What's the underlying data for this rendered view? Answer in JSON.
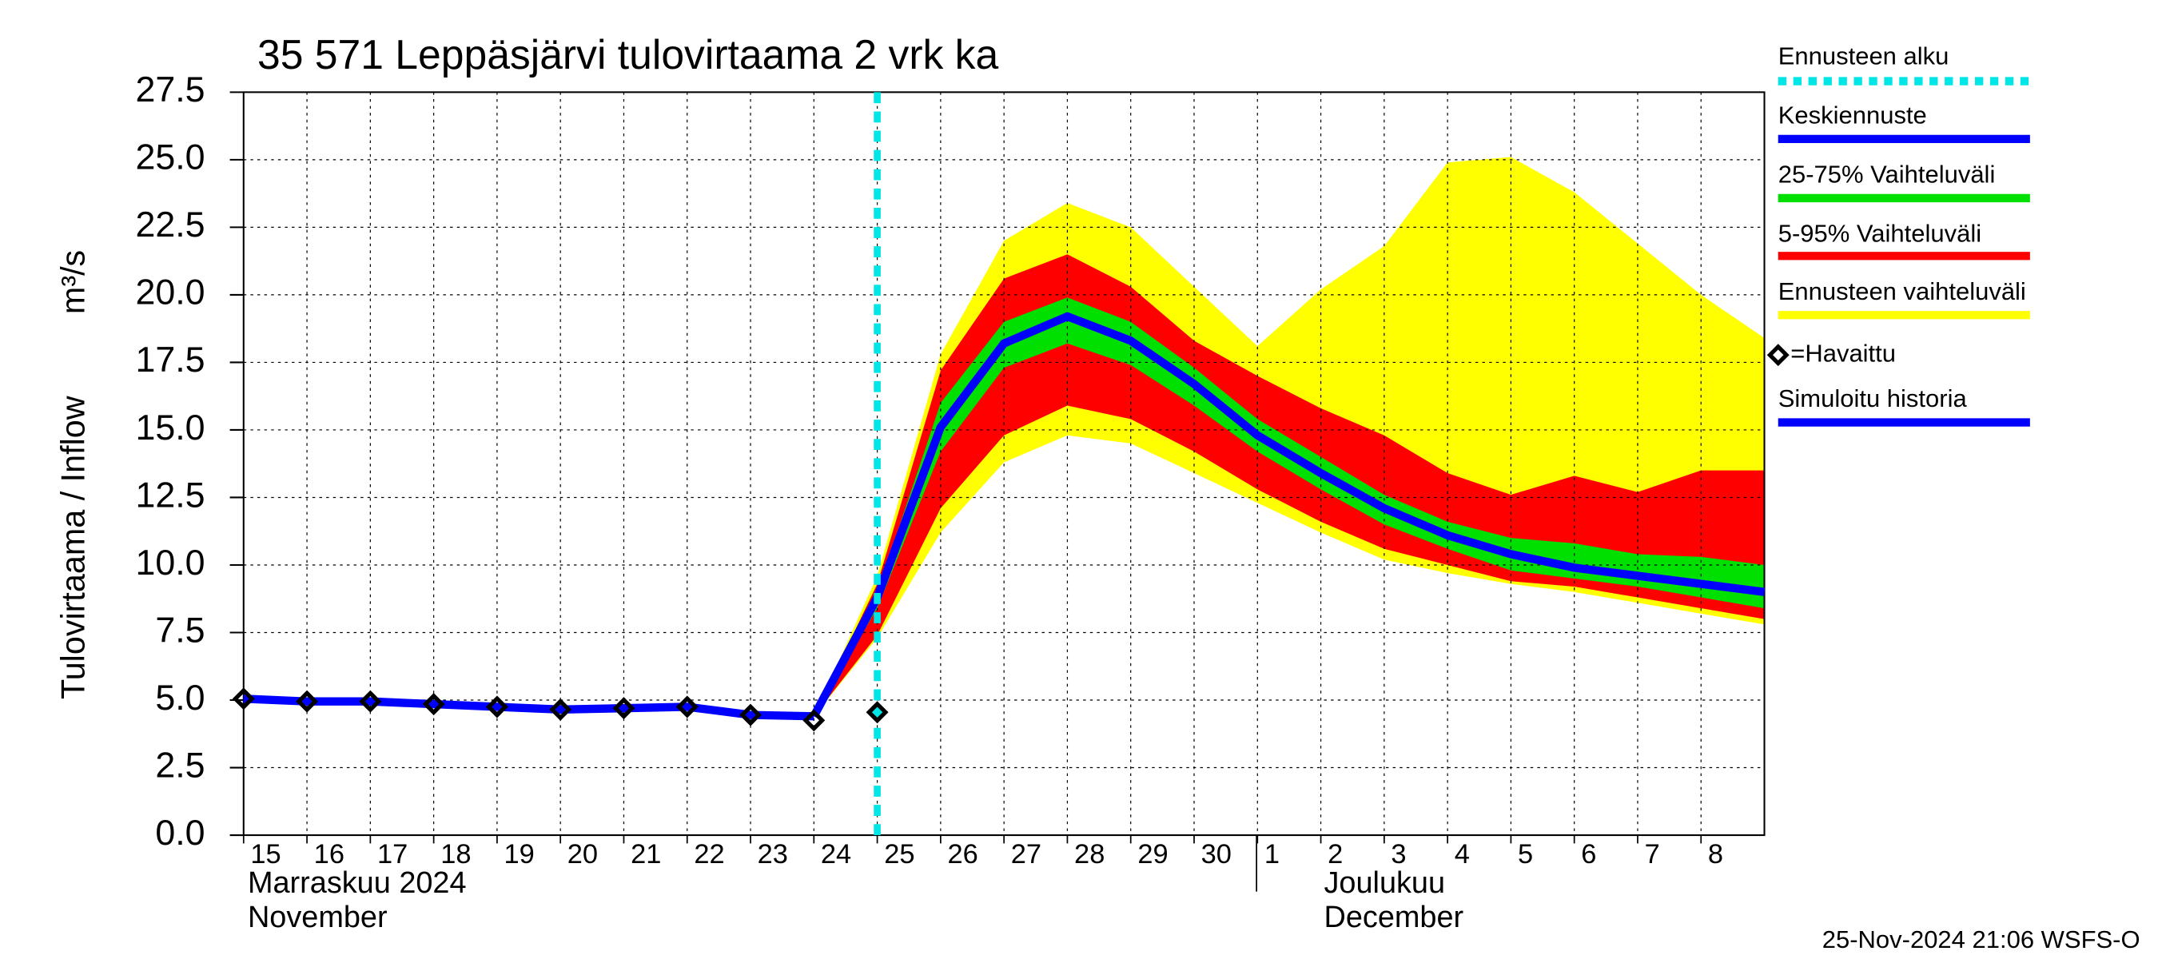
{
  "chart_data": {
    "type": "line",
    "title": "35 571 Leppäsjärvi tulovirtaama 2 vrk ka",
    "y_label": "Tulovirtaama / Inflow",
    "y_unit": "m³/s",
    "xlim": [
      0,
      24
    ],
    "ylim": [
      0,
      27.5
    ],
    "yticks": [
      {
        "value": 0,
        "label": "0.0"
      },
      2.5,
      {
        "value": 5,
        "label": "5.0"
      },
      7.5,
      {
        "value": 10,
        "label": "10.0"
      },
      12.5,
      {
        "value": 15,
        "label": "15.0"
      },
      17.5,
      {
        "value": 20,
        "label": "20.0"
      },
      22.5,
      {
        "value": 25,
        "label": "25.0"
      },
      27.5
    ],
    "xticks": [
      {
        "value": 0,
        "label": "15"
      },
      {
        "value": 1,
        "label": "16"
      },
      {
        "value": 2,
        "label": "17"
      },
      {
        "value": 3,
        "label": "18"
      },
      {
        "value": 4,
        "label": "19"
      },
      {
        "value": 5,
        "label": "20"
      },
      {
        "value": 6,
        "label": "21"
      },
      {
        "value": 7,
        "label": "22"
      },
      {
        "value": 8,
        "label": "23"
      },
      {
        "value": 9,
        "label": "24"
      },
      {
        "value": 10,
        "label": "25"
      },
      {
        "value": 11,
        "label": "26"
      },
      {
        "value": 12,
        "label": "27"
      },
      {
        "value": 13,
        "label": "28"
      },
      {
        "value": 14,
        "label": "29"
      },
      {
        "value": 15,
        "label": "30"
      },
      {
        "value": 16,
        "label": "1"
      },
      {
        "value": 17,
        "label": "2"
      },
      {
        "value": 18,
        "label": "3"
      },
      {
        "value": 19,
        "label": "4"
      },
      {
        "value": 20,
        "label": "5"
      },
      {
        "value": 21,
        "label": "6"
      },
      {
        "value": 22,
        "label": "7"
      },
      {
        "value": 23,
        "label": "8"
      }
    ],
    "months": [
      [
        "Marraskuu 2024",
        "November"
      ],
      [
        "Joulukuu",
        "December"
      ]
    ],
    "grid": true,
    "forecast_start": {
      "name": "Ennusteen alku",
      "color": "#00e5e5",
      "x": 10
    },
    "bands": [
      {
        "name": "Ennusteen vaihteluväli",
        "color": "#ffff00",
        "x": [
          9,
          10,
          11,
          12,
          13,
          14,
          15,
          16,
          17,
          18,
          19,
          20,
          21,
          22,
          23,
          24
        ],
        "upper": [
          4.4,
          9.6,
          17.8,
          22,
          23.4,
          22.5,
          20.3,
          18.1,
          20.2,
          21.8,
          24.9,
          25.1,
          23.8,
          21.9,
          20.0,
          18.4
        ],
        "lower": [
          4.4,
          7.3,
          11.2,
          13.8,
          14.8,
          14.5,
          13.4,
          12.3,
          11.2,
          10.2,
          9.7,
          9.3,
          9.0,
          8.6,
          8.2,
          7.8
        ]
      },
      {
        "name": "5-95% Vaihteluväli",
        "color": "#ff0000",
        "x": [
          9,
          10,
          11,
          12,
          13,
          14,
          15,
          16,
          17,
          18,
          19,
          20,
          21,
          22,
          23,
          24
        ],
        "upper": [
          4.4,
          9.3,
          17.2,
          20.6,
          21.5,
          20.3,
          18.3,
          17.0,
          15.8,
          14.8,
          13.4,
          12.6,
          13.3,
          12.7,
          13.5,
          13.5
        ],
        "lower": [
          4.4,
          7.4,
          12.1,
          14.8,
          15.9,
          15.4,
          14.2,
          12.8,
          11.6,
          10.6,
          10.0,
          9.4,
          9.2,
          8.8,
          8.4,
          8.0
        ]
      },
      {
        "name": "25-75% Vaihteluväli",
        "color": "#00e000",
        "x": [
          9,
          10,
          11,
          12,
          13,
          14,
          15,
          16,
          17,
          18,
          19,
          20,
          21,
          22,
          23,
          24
        ],
        "upper": [
          4.4,
          9.0,
          16.0,
          19.0,
          19.9,
          19.0,
          17.3,
          15.4,
          14.0,
          12.6,
          11.6,
          11.0,
          10.8,
          10.4,
          10.3,
          10.0
        ],
        "lower": [
          4.4,
          8.4,
          14.2,
          17.3,
          18.2,
          17.4,
          15.9,
          14.2,
          12.8,
          11.5,
          10.6,
          9.8,
          9.5,
          9.2,
          8.8,
          8.4
        ]
      }
    ],
    "series": [
      {
        "name": "Keskiennuste",
        "color": "#0000ff",
        "x": [
          9,
          10,
          11,
          12,
          13,
          14,
          15,
          16,
          17,
          18,
          19,
          20,
          21,
          22,
          23,
          24
        ],
        "values": [
          4.4,
          8.8,
          15.1,
          18.2,
          19.2,
          18.3,
          16.7,
          14.8,
          13.4,
          12.1,
          11.1,
          10.4,
          9.9,
          9.6,
          9.3,
          9.0
        ]
      },
      {
        "name": "Simuloitu historia",
        "color": "#0000ff",
        "x": [
          0,
          1,
          2,
          3,
          4,
          5,
          6,
          7,
          8,
          9
        ],
        "values": [
          5.05,
          4.95,
          4.95,
          4.85,
          4.75,
          4.65,
          4.7,
          4.75,
          4.45,
          4.4
        ]
      }
    ],
    "observed": {
      "name": "=Havaittu",
      "x": [
        0,
        1,
        2,
        3,
        4,
        5,
        6,
        7,
        8,
        9,
        10
      ],
      "values": [
        5.05,
        4.95,
        4.95,
        4.85,
        4.75,
        4.65,
        4.7,
        4.75,
        4.45,
        4.25,
        4.55
      ]
    },
    "footer": "25-Nov-2024 21:06 WSFS-O"
  }
}
